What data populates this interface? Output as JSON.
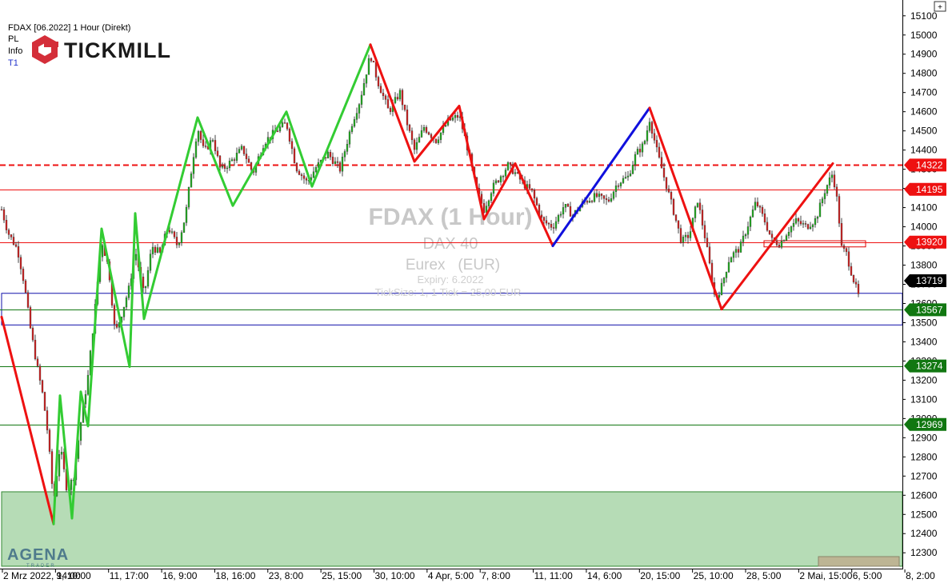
{
  "header": {
    "instrument_line": "FDAX [06.2022] 1 Hour (Direkt)",
    "menu_items": [
      "PL",
      "Info",
      "T1"
    ],
    "brand": "TICKMILL",
    "bottom_logo": "AGENA",
    "bottom_logo_sub": "TRADER"
  },
  "watermark": {
    "title": "FDAX (1 Hour)",
    "line2": "DAX 40",
    "line3": "Eurex   (EUR)",
    "line4": "Expiry: 6.2022",
    "line5": "TickSize: 1, 1 Tick = 25,00 EUR"
  },
  "colors": {
    "up_leg": "#33cc33",
    "down_leg": "#ee1111",
    "blue_leg": "#1010dd",
    "resistance": "#dd0000",
    "support": "#008800",
    "zone_fill": "#b6dcb6",
    "box_blue": "#1010aa"
  },
  "chart_data": {
    "type": "line",
    "title": "FDAX (1 Hour)",
    "ylim": [
      12230,
      15170
    ],
    "y_ticks": [
      12300,
      12400,
      12500,
      12600,
      12700,
      12800,
      12900,
      13000,
      13100,
      13200,
      13300,
      13400,
      13500,
      13600,
      13700,
      13800,
      13900,
      14000,
      14100,
      14200,
      14300,
      14400,
      14500,
      14600,
      14700,
      14800,
      14900,
      15000,
      15100
    ],
    "x_labels": [
      "2 Mrz 2022, 14:00",
      "9, 10:00",
      "11, 17:00",
      "16, 9:00",
      "18, 16:00",
      "23, 8:00",
      "25, 15:00",
      "30, 10:00",
      "4 Apr, 5:00",
      "7, 8:00",
      "11, 11:00",
      "14, 6:00",
      "20, 15:00",
      "25, 10:00",
      "28, 5:00",
      "2 Mai, 15:00",
      "6, 5:00",
      "8, 2:00"
    ],
    "x_range": [
      0,
      1128
    ],
    "last_price": 13719,
    "levels": [
      {
        "value": 14322,
        "label": "14322",
        "color": "#ee1111",
        "style": "dashed"
      },
      {
        "value": 14195,
        "label": "14195",
        "color": "#ee1111",
        "style": "solid"
      },
      {
        "value": 13920,
        "label": "13920",
        "color": "#ee1111",
        "style": "solid"
      },
      {
        "value": 13567,
        "label": "13567",
        "color": "#117711",
        "style": "solid"
      },
      {
        "value": 13274,
        "label": "13274",
        "color": "#117711",
        "style": "solid"
      },
      {
        "value": 12969,
        "label": "12969",
        "color": "#117711",
        "style": "solid"
      }
    ],
    "zones": [
      {
        "name": "blue-box",
        "x0": 2,
        "x1": 1128,
        "y0": 13488,
        "y1": 13653,
        "color": "#1010aa"
      },
      {
        "name": "red-box",
        "x0": 955,
        "x1": 1082,
        "y0": 13895,
        "y1": 13927,
        "color": "#dd0000"
      },
      {
        "name": "green-zone",
        "x0": 2,
        "x1": 1128,
        "y0": 12230,
        "y1": 12618,
        "color": "#b6dcb6"
      }
    ],
    "zigzag_legs": [
      {
        "color": "#ee1111",
        "points": [
          [
            2,
            13530
          ],
          [
            67,
            12450
          ]
        ]
      },
      {
        "color": "#33cc33",
        "points": [
          [
            67,
            12450
          ],
          [
            75,
            13120
          ],
          [
            90,
            12480
          ],
          [
            101,
            13140
          ],
          [
            110,
            12960
          ],
          [
            127,
            13990
          ],
          [
            162,
            13270
          ],
          [
            169,
            14070
          ],
          [
            180,
            13520
          ],
          [
            247,
            14570
          ],
          [
            291,
            14110
          ],
          [
            358,
            14600
          ],
          [
            390,
            14210
          ],
          [
            463,
            14950
          ]
        ]
      },
      {
        "color": "#ee1111",
        "points": [
          [
            463,
            14950
          ],
          [
            518,
            14340
          ],
          [
            574,
            14630
          ],
          [
            605,
            14040
          ],
          [
            644,
            14330
          ],
          [
            691,
            13900
          ]
        ]
      },
      {
        "color": "#1010dd",
        "points": [
          [
            691,
            13900
          ],
          [
            812,
            14620
          ]
        ]
      },
      {
        "color": "#ee1111",
        "points": [
          [
            812,
            14620
          ],
          [
            902,
            13570
          ],
          [
            1041,
            14330
          ]
        ]
      }
    ],
    "price_path": [
      [
        2,
        14090
      ],
      [
        10,
        13970
      ],
      [
        22,
        13880
      ],
      [
        30,
        13710
      ],
      [
        38,
        13470
      ],
      [
        46,
        13280
      ],
      [
        54,
        13110
      ],
      [
        60,
        12910
      ],
      [
        67,
        12560
      ],
      [
        75,
        12860
      ],
      [
        84,
        12620
      ],
      [
        92,
        12700
      ],
      [
        101,
        12980
      ],
      [
        110,
        13220
      ],
      [
        118,
        13540
      ],
      [
        127,
        13930
      ],
      [
        136,
        13780
      ],
      [
        144,
        13440
      ],
      [
        153,
        13560
      ],
      [
        162,
        13690
      ],
      [
        169,
        13880
      ],
      [
        180,
        13640
      ],
      [
        190,
        13900
      ],
      [
        200,
        13860
      ],
      [
        210,
        14000
      ],
      [
        222,
        13900
      ],
      [
        232,
        14060
      ],
      [
        240,
        14320
      ],
      [
        247,
        14520
      ],
      [
        255,
        14390
      ],
      [
        266,
        14460
      ],
      [
        276,
        14290
      ],
      [
        291,
        14350
      ],
      [
        303,
        14410
      ],
      [
        316,
        14280
      ],
      [
        330,
        14440
      ],
      [
        345,
        14500
      ],
      [
        358,
        14540
      ],
      [
        370,
        14310
      ],
      [
        384,
        14230
      ],
      [
        395,
        14310
      ],
      [
        410,
        14380
      ],
      [
        425,
        14300
      ],
      [
        440,
        14540
      ],
      [
        450,
        14660
      ],
      [
        463,
        14900
      ],
      [
        472,
        14760
      ],
      [
        486,
        14600
      ],
      [
        500,
        14700
      ],
      [
        510,
        14520
      ],
      [
        518,
        14400
      ],
      [
        530,
        14520
      ],
      [
        545,
        14450
      ],
      [
        560,
        14550
      ],
      [
        574,
        14580
      ],
      [
        585,
        14400
      ],
      [
        595,
        14200
      ],
      [
        605,
        14090
      ],
      [
        615,
        14200
      ],
      [
        625,
        14260
      ],
      [
        635,
        14320
      ],
      [
        644,
        14280
      ],
      [
        655,
        14220
      ],
      [
        665,
        14180
      ],
      [
        678,
        14030
      ],
      [
        691,
        14000
      ],
      [
        705,
        14110
      ],
      [
        716,
        14060
      ],
      [
        730,
        14130
      ],
      [
        745,
        14160
      ],
      [
        760,
        14130
      ],
      [
        772,
        14230
      ],
      [
        785,
        14260
      ],
      [
        795,
        14380
      ],
      [
        805,
        14430
      ],
      [
        812,
        14560
      ],
      [
        822,
        14380
      ],
      [
        832,
        14230
      ],
      [
        842,
        14080
      ],
      [
        852,
        13920
      ],
      [
        862,
        13960
      ],
      [
        872,
        14140
      ],
      [
        882,
        13930
      ],
      [
        894,
        13620
      ],
      [
        902,
        13690
      ],
      [
        912,
        13840
      ],
      [
        925,
        13890
      ],
      [
        935,
        14010
      ],
      [
        945,
        14130
      ],
      [
        955,
        14040
      ],
      [
        965,
        13930
      ],
      [
        975,
        13910
      ],
      [
        985,
        13980
      ],
      [
        995,
        14030
      ],
      [
        1008,
        14000
      ],
      [
        1020,
        14040
      ],
      [
        1032,
        14200
      ],
      [
        1041,
        14280
      ],
      [
        1047,
        14120
      ],
      [
        1052,
        13890
      ],
      [
        1058,
        13860
      ],
      [
        1065,
        13750
      ],
      [
        1073,
        13640
      ]
    ]
  }
}
